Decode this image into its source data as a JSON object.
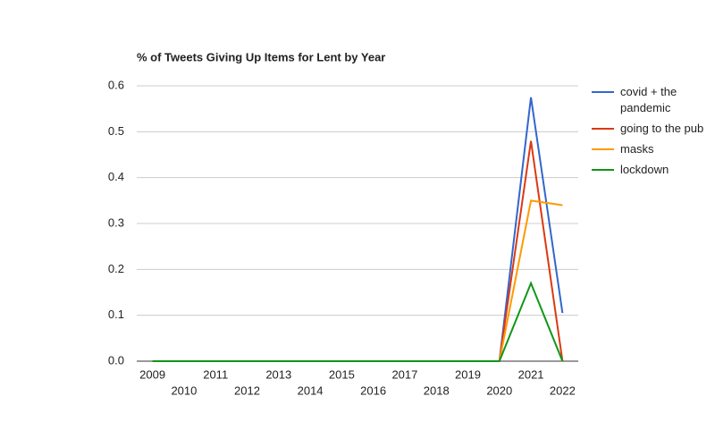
{
  "chart_data": {
    "type": "line",
    "title": "% of Tweets Giving Up Items for Lent by Year",
    "categories": [
      "2009",
      "2010",
      "2011",
      "2012",
      "2013",
      "2014",
      "2015",
      "2016",
      "2017",
      "2018",
      "2019",
      "2020",
      "2021",
      "2022"
    ],
    "series": [
      {
        "name": "covid + the pandemic",
        "color": "#3366cc",
        "values": [
          0,
          0,
          0,
          0,
          0,
          0,
          0,
          0,
          0,
          0,
          0,
          0,
          0.575,
          0.105
        ]
      },
      {
        "name": "going to the pub",
        "color": "#dc3912",
        "values": [
          0,
          0,
          0,
          0,
          0,
          0,
          0,
          0,
          0,
          0,
          0,
          0,
          0.48,
          0
        ]
      },
      {
        "name": "masks",
        "color": "#ff9900",
        "values": [
          0,
          0,
          0,
          0,
          0,
          0,
          0,
          0,
          0,
          0,
          0,
          0,
          0.35,
          0.34
        ]
      },
      {
        "name": "lockdown",
        "color": "#109618",
        "values": [
          0,
          0,
          0,
          0,
          0,
          0,
          0,
          0,
          0,
          0,
          0,
          0,
          0.17,
          0
        ]
      }
    ],
    "ylim": [
      0,
      0.6
    ],
    "yticks": [
      {
        "value": 0,
        "label": "0.0"
      },
      0.1,
      0.2,
      0.3,
      0.4,
      0.5,
      0.6
    ],
    "grid": true,
    "legend": "right"
  }
}
